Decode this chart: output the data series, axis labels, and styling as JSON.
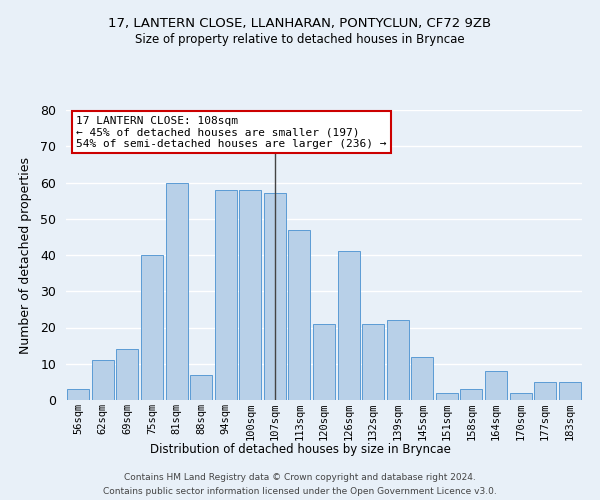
{
  "title1": "17, LANTERN CLOSE, LLANHARAN, PONTYCLUN, CF72 9ZB",
  "title2": "Size of property relative to detached houses in Bryncae",
  "xlabel": "Distribution of detached houses by size in Bryncae",
  "ylabel": "Number of detached properties",
  "categories": [
    "56sqm",
    "62sqm",
    "69sqm",
    "75sqm",
    "81sqm",
    "88sqm",
    "94sqm",
    "100sqm",
    "107sqm",
    "113sqm",
    "120sqm",
    "126sqm",
    "132sqm",
    "139sqm",
    "145sqm",
    "151sqm",
    "158sqm",
    "164sqm",
    "170sqm",
    "177sqm",
    "183sqm"
  ],
  "values": [
    3,
    11,
    14,
    40,
    60,
    7,
    58,
    58,
    57,
    47,
    21,
    41,
    21,
    22,
    12,
    2,
    3,
    8,
    2,
    5,
    5
  ],
  "bar_color": "#b8d0e8",
  "bar_edge_color": "#5b9bd5",
  "vline_x_index": 8,
  "annotation_line1": "17 LANTERN CLOSE: 108sqm",
  "annotation_line2": "← 45% of detached houses are smaller (197)",
  "annotation_line3": "54% of semi-detached houses are larger (236) →",
  "annotation_box_facecolor": "#ffffff",
  "annotation_box_edgecolor": "#cc0000",
  "vline_color": "#444444",
  "background_color": "#e8f0f8",
  "grid_color": "#ffffff",
  "ylim": [
    0,
    80
  ],
  "yticks": [
    0,
    10,
    20,
    30,
    40,
    50,
    60,
    70,
    80
  ],
  "footer1": "Contains HM Land Registry data © Crown copyright and database right 2024.",
  "footer2": "Contains public sector information licensed under the Open Government Licence v3.0."
}
